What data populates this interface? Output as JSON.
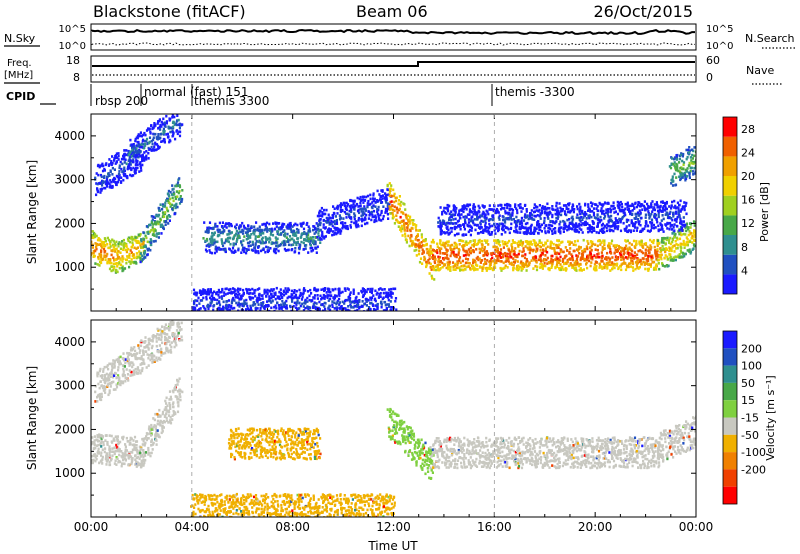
{
  "header": {
    "title": "Blackstone (fitACF)",
    "beam": "Beam 06",
    "date": "26/Oct/2015"
  },
  "panels": {
    "nsky": {
      "left_label": "N.Sky",
      "right_label": "N.Search",
      "left_ticks": [
        "10^5",
        "10^0"
      ],
      "right_ticks": [
        "10^5",
        "10^0"
      ]
    },
    "freq": {
      "left_label_1": "Freq.",
      "left_label_2": "[MHz]",
      "right_label": "Nave",
      "left_ticks": [
        "18",
        "8"
      ],
      "right_ticks": [
        "60",
        "0"
      ]
    },
    "cpid": {
      "label": "CPID",
      "entries": [
        "rbsp 200",
        "normal (fast) 151",
        "themis 3300",
        "themis -3300"
      ]
    }
  },
  "chart_data": [
    {
      "type": "heatmap",
      "title": "",
      "xlabel": "",
      "ylabel": "Slant Range [km]",
      "xlim": [
        0,
        24
      ],
      "ylim": [
        0,
        4500
      ],
      "x_ticks": [
        "00:00",
        "04:00",
        "08:00",
        "12:00",
        "16:00",
        "20:00",
        "00:00"
      ],
      "y_ticks": [
        "1000",
        "2000",
        "3000",
        "4000"
      ],
      "colorbar": {
        "label": "Power [dB]",
        "ticks": [
          "28",
          "24",
          "20",
          "16",
          "12",
          "8",
          "4"
        ],
        "range": [
          0,
          30
        ],
        "colors": [
          "#1a1aff",
          "#2050c0",
          "#2f8f8f",
          "#48a848",
          "#a0d020",
          "#f0d000",
          "#f0a000",
          "#f06000",
          "#ff0000"
        ]
      },
      "bands": [
        {
          "t_start": 0.0,
          "t_end": 1.0,
          "range_start": 1500,
          "range_end": 1250,
          "level": 24
        },
        {
          "t_start": 1.0,
          "t_end": 2.0,
          "range_start": 1250,
          "range_end": 1500,
          "level": 22
        },
        {
          "t_start": 2.0,
          "t_end": 3.5,
          "range_start": 1500,
          "range_end": 2800,
          "level": 14
        },
        {
          "t_start": 4.5,
          "t_end": 9.0,
          "range_start": 1700,
          "range_end": 1700,
          "level": 10
        },
        {
          "t_start": 9.0,
          "t_end": 11.8,
          "range_start": 2000,
          "range_end": 2500,
          "level": 5
        },
        {
          "t_start": 11.8,
          "t_end": 13.5,
          "range_start": 2600,
          "range_end": 1100,
          "level": 26
        },
        {
          "t_start": 13.5,
          "t_end": 22.5,
          "range_start": 1300,
          "range_end": 1300,
          "level": 27
        },
        {
          "t_start": 22.5,
          "t_end": 24.0,
          "range_start": 1300,
          "range_end": 1800,
          "level": 20
        },
        {
          "t_start": 0.2,
          "t_end": 2.0,
          "range_start": 3000,
          "range_end": 3600,
          "level": 6
        },
        {
          "t_start": 1.5,
          "t_end": 3.5,
          "range_start": 3600,
          "range_end": 4400,
          "level": 7
        },
        {
          "t_start": 13.8,
          "t_end": 23.5,
          "range_start": 2100,
          "range_end": 2200,
          "level": 5
        },
        {
          "t_start": 23.0,
          "t_end": 24.0,
          "range_start": 3200,
          "range_end": 3500,
          "level": 14
        },
        {
          "t_start": 4.0,
          "t_end": 12.0,
          "range_start": 200,
          "range_end": 200,
          "level": 5
        }
      ]
    },
    {
      "type": "heatmap",
      "title": "",
      "xlabel": "Time UT",
      "ylabel": "Slant Range [km]",
      "xlim": [
        0,
        24
      ],
      "ylim": [
        0,
        4500
      ],
      "x_ticks": [
        "00:00",
        "04:00",
        "08:00",
        "12:00",
        "16:00",
        "20:00",
        "00:00"
      ],
      "y_ticks": [
        "1000",
        "2000",
        "3000",
        "4000"
      ],
      "colorbar": {
        "label": "Velocity [m s⁻¹]",
        "ticks": [
          "200",
          "100",
          "50",
          "15",
          "-15",
          "-50",
          "-100",
          "-200"
        ],
        "colors": [
          "#1a1aff",
          "#2050c0",
          "#2f8f8f",
          "#48a848",
          "#7fd040",
          "#c8c8c0",
          "#f0b000",
          "#f08000",
          "#f04000",
          "#ff0000"
        ]
      },
      "bands": [
        {
          "t_start": 0.0,
          "t_end": 2.0,
          "range_start": 1600,
          "range_end": 1500,
          "velocity_class": "ground"
        },
        {
          "t_start": 2.0,
          "t_end": 3.5,
          "range_start": 1500,
          "range_end": 2900,
          "velocity_class": "ground"
        },
        {
          "t_start": 5.5,
          "t_end": 9.0,
          "range_start": 1700,
          "range_end": 1700,
          "velocity_class": "-50"
        },
        {
          "t_start": 11.8,
          "t_end": 13.5,
          "range_start": 2200,
          "range_end": 1200,
          "velocity_class": "15"
        },
        {
          "t_start": 13.5,
          "t_end": 22.5,
          "range_start": 1500,
          "range_end": 1500,
          "velocity_class": "ground"
        },
        {
          "t_start": 22.5,
          "t_end": 24.0,
          "range_start": 1600,
          "range_end": 2000,
          "velocity_class": "ground"
        },
        {
          "t_start": 0.2,
          "t_end": 3.5,
          "range_start": 3000,
          "range_end": 4300,
          "velocity_class": "ground"
        },
        {
          "t_start": 4.0,
          "t_end": 12.0,
          "range_start": 200,
          "range_end": 200,
          "velocity_class": "-50"
        }
      ]
    }
  ]
}
